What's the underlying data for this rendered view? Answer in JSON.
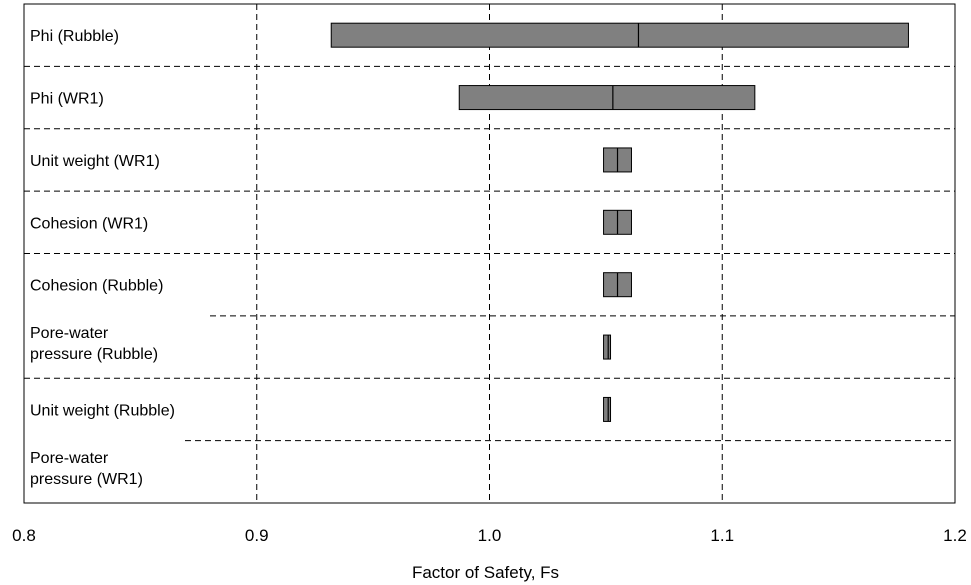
{
  "chart_data": {
    "type": "bar",
    "title": "",
    "xlabel": "Factor of Safety, Fs",
    "ylabel": "",
    "xlim": [
      0.8,
      1.2
    ],
    "xticks": [
      0.8,
      0.9,
      1.0,
      1.1,
      1.2
    ],
    "xtick_labels": [
      "0.8",
      "0.9",
      "1.0",
      "1.1",
      "1.2"
    ],
    "grid": true,
    "orientation": "horizontal",
    "bar_color": "#808080",
    "edge_color": "#000000",
    "categories": [
      "Phi (Rubble)",
      "Phi (WR1)",
      "Unit weight (WR1)",
      "Cohesion (WR1)",
      "Cohesion (Rubble)",
      "Pore-water\npressure (Rubble)",
      "Unit weight (Rubble)",
      "Pore-water\npressure (WR1)"
    ],
    "series": [
      {
        "low": [
          0.932,
          0.987,
          1.049,
          1.049,
          1.049,
          1.049,
          1.049,
          null
        ],
        "mid": [
          1.064,
          1.053,
          1.055,
          1.055,
          1.055,
          1.051,
          1.051,
          null
        ],
        "high": [
          1.18,
          1.114,
          1.061,
          1.061,
          1.061,
          1.052,
          1.052,
          null
        ]
      }
    ]
  }
}
